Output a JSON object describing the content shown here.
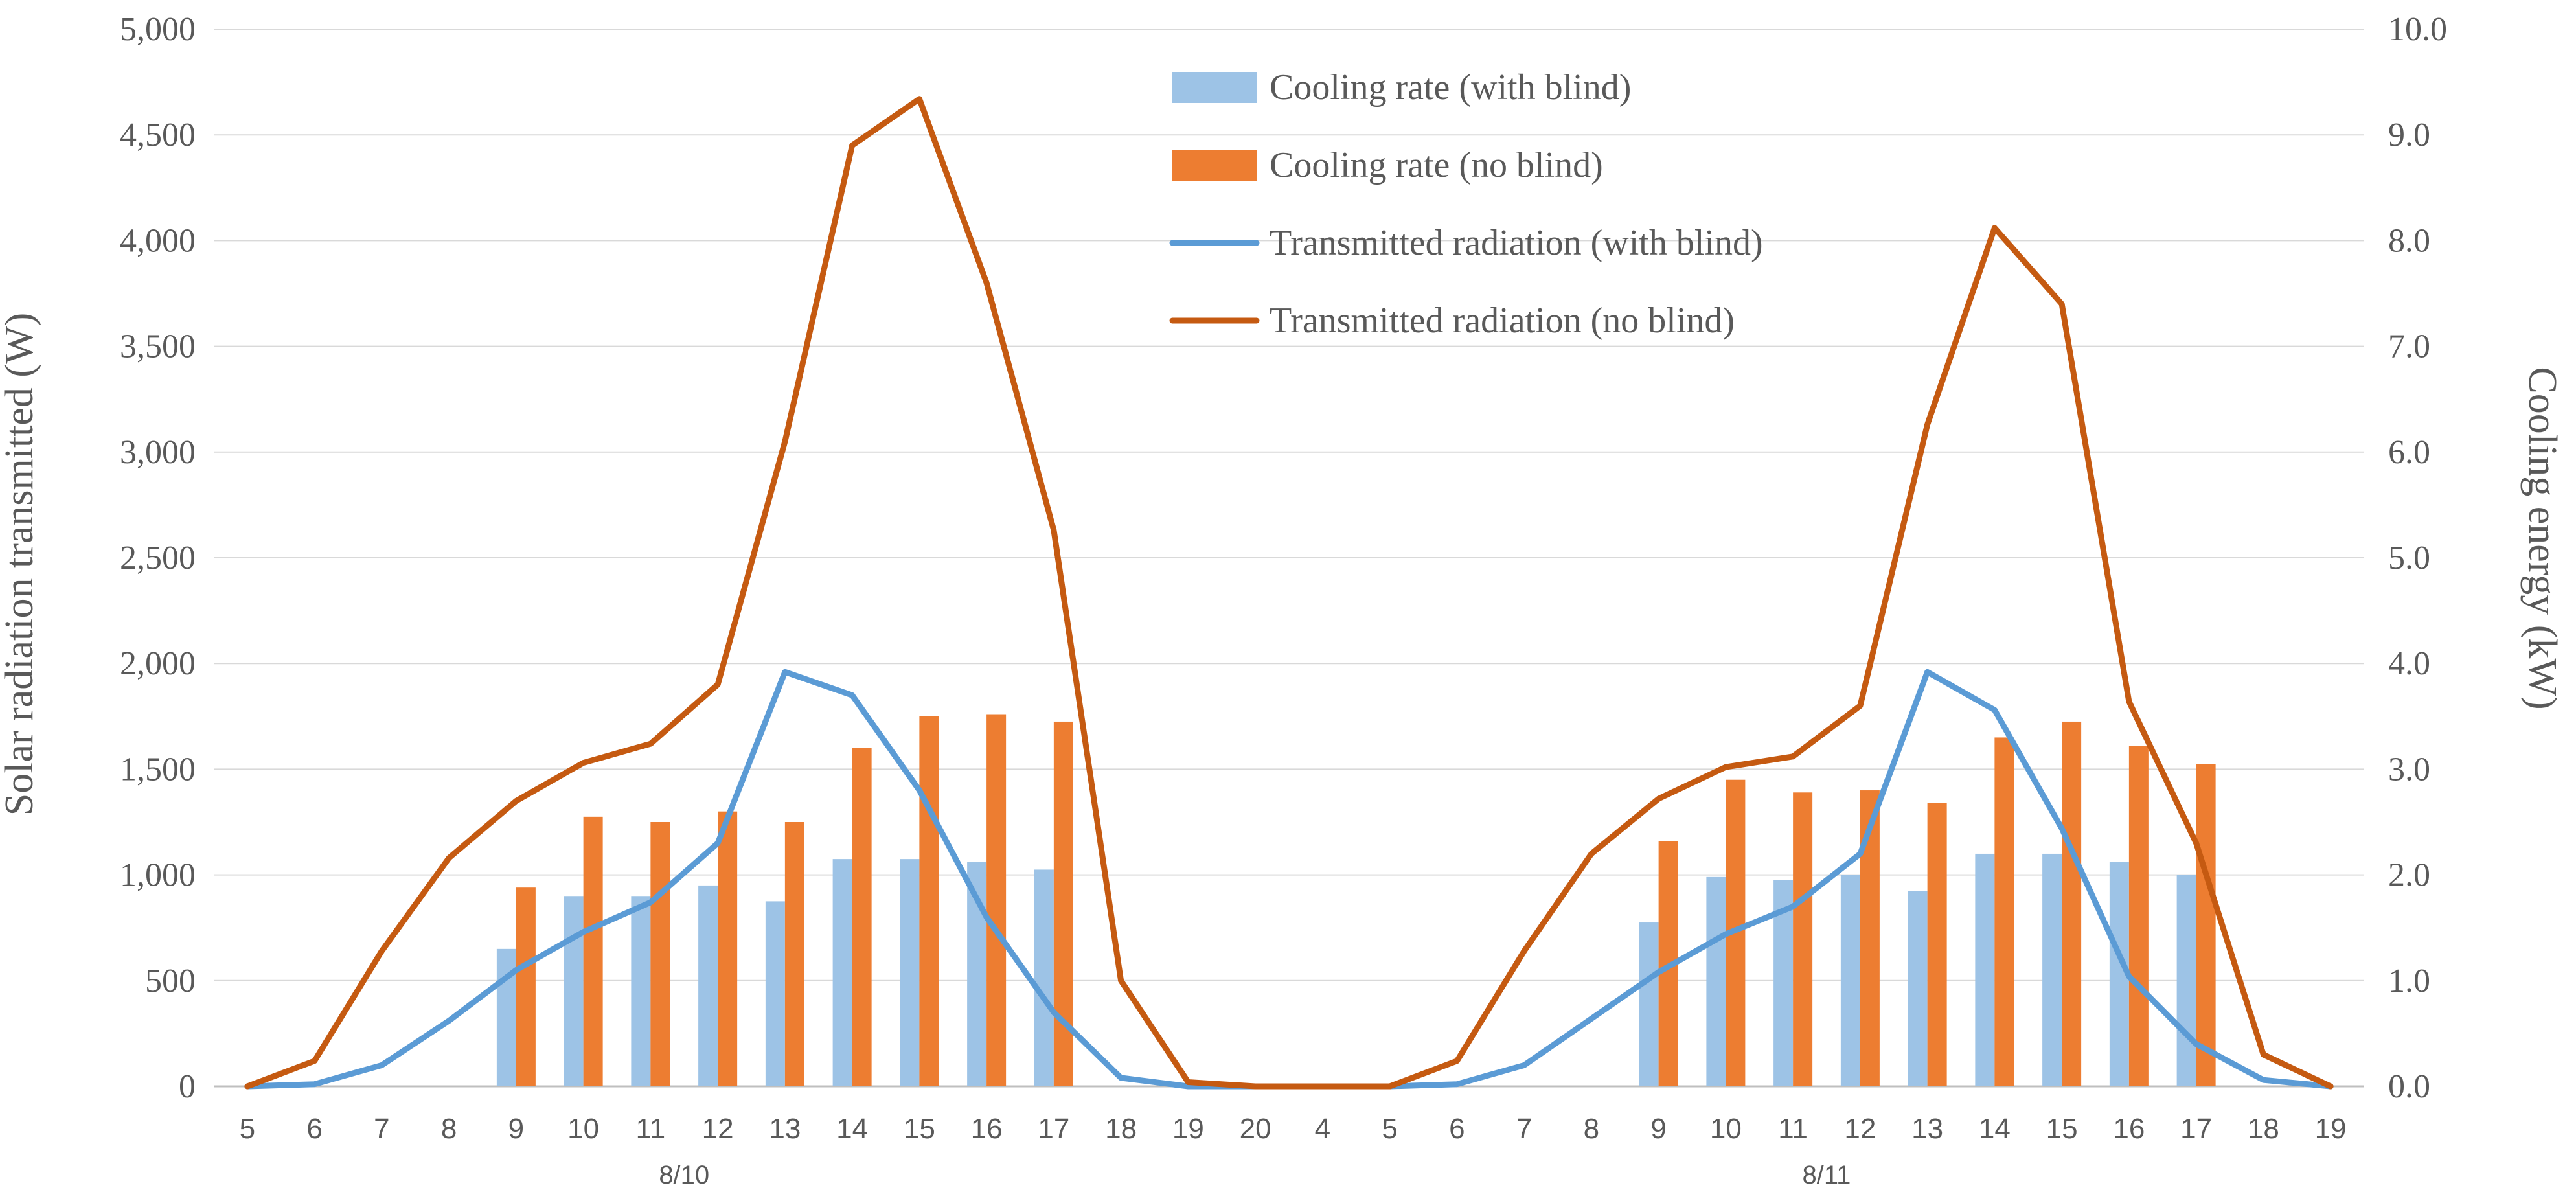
{
  "chart_data": {
    "type": "bar+line",
    "title": "",
    "categories": [
      "5",
      "6",
      "7",
      "8",
      "9",
      "10",
      "11",
      "12",
      "13",
      "14",
      "15",
      "16",
      "17",
      "18",
      "19",
      "20",
      "4",
      "5",
      "6",
      "7",
      "8",
      "9",
      "10",
      "11",
      "12",
      "13",
      "14",
      "15",
      "16",
      "17",
      "18",
      "19"
    ],
    "date_labels": [
      {
        "label": "8/10",
        "category_index": 6.5
      },
      {
        "label": "8/11",
        "category_index": 23.5
      }
    ],
    "y_left": {
      "label": "Solar radiation transmitted (W)",
      "range": [
        0,
        5000
      ],
      "ticks": [
        0,
        500,
        1000,
        1500,
        2000,
        2500,
        3000,
        3500,
        4000,
        4500,
        5000
      ],
      "tick_labels": [
        "0",
        "500",
        "1,000",
        "1,500",
        "2,000",
        "2,500",
        "3,000",
        "3,500",
        "4,000",
        "4,500",
        "5,000"
      ]
    },
    "y_right": {
      "label": "Cooling energy (kW)",
      "range": [
        0,
        10
      ],
      "ticks": [
        0,
        1,
        2,
        3,
        4,
        5,
        6,
        7,
        8,
        9,
        10
      ],
      "tick_labels": [
        "0.0",
        "1.0",
        "2.0",
        "3.0",
        "4.0",
        "5.0",
        "6.0",
        "7.0",
        "8.0",
        "9.0",
        "10.0"
      ]
    },
    "grid": "horizontal",
    "legend_position": "top-center",
    "series": [
      {
        "name": "Cooling rate (with blind)",
        "type": "bar",
        "axis": "right",
        "color": "#9dc3e6",
        "values": [
          null,
          null,
          null,
          null,
          1.3,
          1.8,
          1.8,
          1.9,
          1.75,
          2.15,
          2.15,
          2.12,
          2.05,
          null,
          null,
          null,
          null,
          null,
          null,
          null,
          null,
          1.55,
          1.98,
          1.95,
          2.0,
          1.85,
          2.2,
          2.2,
          2.12,
          2.0,
          null,
          null
        ]
      },
      {
        "name": "Cooling rate (no blind)",
        "type": "bar",
        "axis": "right",
        "color": "#ed7d31",
        "values": [
          null,
          null,
          null,
          null,
          1.88,
          2.55,
          2.5,
          2.6,
          2.5,
          3.2,
          3.5,
          3.52,
          3.45,
          null,
          null,
          null,
          null,
          null,
          null,
          null,
          null,
          2.32,
          2.9,
          2.78,
          2.8,
          2.68,
          3.3,
          3.45,
          3.22,
          3.05,
          null,
          null
        ]
      },
      {
        "name": "Transmitted radiation (with blind)",
        "type": "line",
        "axis": "left",
        "color": "#5b9bd5",
        "values": [
          0,
          10,
          100,
          310,
          550,
          730,
          870,
          1150,
          1960,
          1850,
          1400,
          800,
          350,
          40,
          0,
          0,
          0,
          0,
          10,
          100,
          320,
          540,
          720,
          850,
          1100,
          1960,
          1780,
          1220,
          520,
          200,
          30,
          0
        ]
      },
      {
        "name": "Transmitted radiation (no blind)",
        "type": "line",
        "axis": "left",
        "color": "#c55a11",
        "values": [
          0,
          120,
          640,
          1080,
          1350,
          1530,
          1620,
          1900,
          3050,
          4450,
          4670,
          3800,
          2630,
          500,
          20,
          0,
          0,
          0,
          120,
          640,
          1100,
          1360,
          1510,
          1560,
          1800,
          3130,
          4060,
          3700,
          1820,
          1150,
          150,
          0
        ]
      }
    ]
  }
}
